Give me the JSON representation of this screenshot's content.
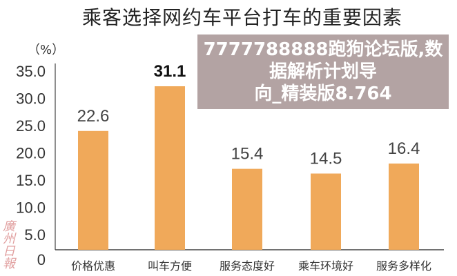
{
  "chart_data": {
    "type": "bar",
    "title": "乘客选择网约车平台打车的重要因素",
    "ylabel": "（%）",
    "categories": [
      "价格优惠",
      "叫车方便",
      "服务态度好",
      "乘车环境好",
      "服务多样化"
    ],
    "values": [
      22.6,
      31.1,
      15.4,
      14.5,
      16.4
    ],
    "data_labels": [
      "22.6",
      "31.1",
      "15.4",
      "14.5",
      "16.4"
    ],
    "yticks": [
      "0",
      "5.0",
      "10.0",
      "15.0",
      "20.0",
      "25.0",
      "30.0",
      "35.0"
    ],
    "ylim": [
      0,
      35
    ],
    "grid": false,
    "bar_color": "#f0a95a"
  },
  "overlay": {
    "line1": "7777788888跑狗论坛版,数据解析计划导",
    "line2": "向_精装版8.764"
  },
  "watermark": "广州日报"
}
